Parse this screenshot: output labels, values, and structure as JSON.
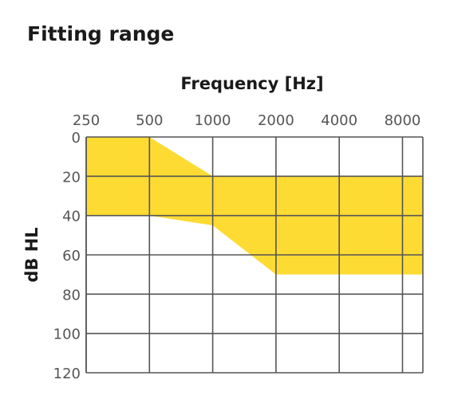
{
  "page": {
    "title": "Fitting range"
  },
  "chart_data": {
    "type": "area",
    "title": "Fitting range",
    "xlabel": "Frequency [Hz]",
    "ylabel": "dB HL",
    "x_ticks": [
      "250",
      "500",
      "1000",
      "2000",
      "4000",
      "8000"
    ],
    "y_ticks": [
      "0",
      "20",
      "40",
      "60",
      "80",
      "100",
      "120"
    ],
    "ylim": [
      0,
      120
    ],
    "y_inverted": true,
    "x_scale": "log",
    "grid": true,
    "fill_color": "#FDDB33",
    "grid_color": "#555555",
    "range_upper": {
      "x": [
        250,
        500,
        1000,
        10000
      ],
      "y": [
        0,
        0,
        20,
        20
      ]
    },
    "range_lower": {
      "x": [
        250,
        500,
        1000,
        2000,
        10000
      ],
      "y": [
        40,
        40,
        45,
        70,
        70
      ]
    }
  }
}
